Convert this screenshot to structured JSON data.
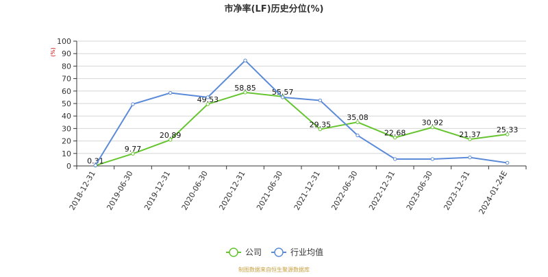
{
  "chart_data": {
    "type": "line",
    "title": "市净率(LF)历史分位(%)",
    "ylabel": "(%)",
    "xlabel": "",
    "ylim": [
      0,
      100
    ],
    "yticks": [
      0,
      10,
      20,
      30,
      40,
      50,
      60,
      70,
      80,
      90,
      100
    ],
    "categories": [
      "2018-12-31",
      "2019-06-30",
      "2019-12-31",
      "2020-06-30",
      "2020-12-31",
      "2021-06-30",
      "2021-12-31",
      "2022-06-30",
      "2022-12-31",
      "2023-06-30",
      "2023-12-31",
      "2024-01-24E"
    ],
    "grid": true,
    "legend_position": "bottom",
    "series": [
      {
        "name": "公司",
        "color": "#66c430",
        "values": [
          0.31,
          9.77,
          20.89,
          49.53,
          58.85,
          55.57,
          29.35,
          35.08,
          22.68,
          30.92,
          21.37,
          25.33
        ],
        "labels": [
          "0.31",
          "9.77",
          "20.89",
          "49.53",
          "58.85",
          "55.57",
          "29.35",
          "35.08",
          "22.68",
          "30.92",
          "21.37",
          "25.33"
        ]
      },
      {
        "name": "行业均值",
        "color": "#5b8ad8",
        "values": [
          0.5,
          49.5,
          58.5,
          55.0,
          84.5,
          55.0,
          52.5,
          24.5,
          5.5,
          5.5,
          6.8,
          2.5
        ]
      }
    ],
    "source_note": "制图数据来自恒生聚源数据库",
    "source_color": "#c8a040"
  }
}
